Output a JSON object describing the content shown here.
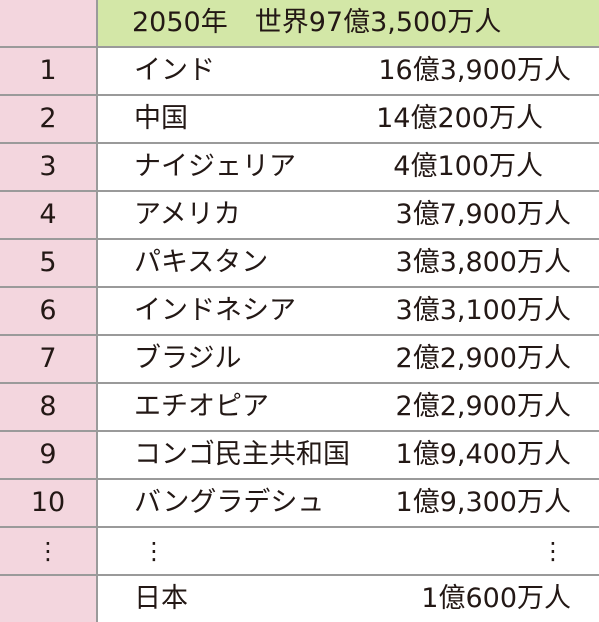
{
  "header": {
    "title": "2050年　世界97億3,500万人"
  },
  "rows": [
    {
      "rank": "1",
      "country": "インド",
      "population": "16億3,900万人"
    },
    {
      "rank": "2",
      "country": "中国",
      "population": "14億200万人"
    },
    {
      "rank": "3",
      "country": "ナイジェリア",
      "population": "4億100万人"
    },
    {
      "rank": "4",
      "country": "アメリカ",
      "population": "3億7,900万人"
    },
    {
      "rank": "5",
      "country": "パキスタン",
      "population": "3億3,800万人"
    },
    {
      "rank": "6",
      "country": "インドネシア",
      "population": "3億3,100万人"
    },
    {
      "rank": "7",
      "country": "ブラジル",
      "population": "2億2,900万人"
    },
    {
      "rank": "8",
      "country": "エチオピア",
      "population": "2億2,900万人"
    },
    {
      "rank": "9",
      "country": "コンゴ民主共和国",
      "population": "1億9,400万人"
    },
    {
      "rank": "10",
      "country": "バングラデシュ",
      "population": "1億9,300万人"
    }
  ],
  "ellipsis_row": {
    "rank": "⋮",
    "country": "⋮",
    "population": "⋮"
  },
  "japan_row": {
    "rank": "",
    "country": "日本",
    "population": "1億600万人"
  }
}
